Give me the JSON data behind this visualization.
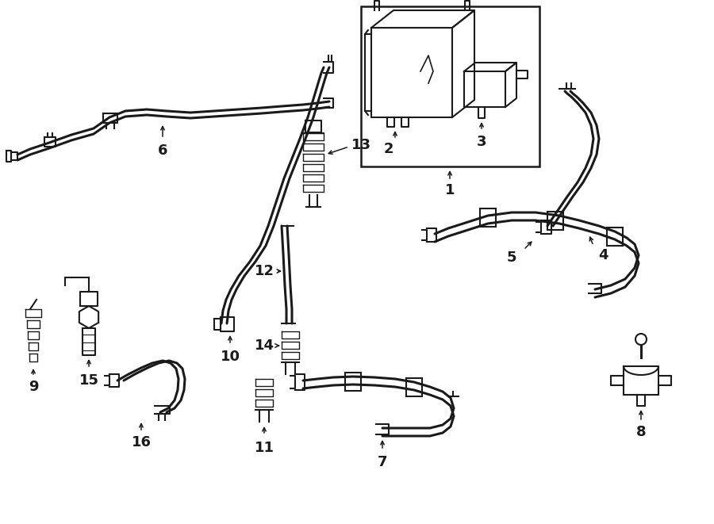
{
  "bg_color": "#ffffff",
  "line_color": "#1a1a1a",
  "fig_width": 9.0,
  "fig_height": 6.61,
  "dpi": 100,
  "lw_thin": 1.0,
  "lw_med": 1.5,
  "lw_thick": 2.2
}
